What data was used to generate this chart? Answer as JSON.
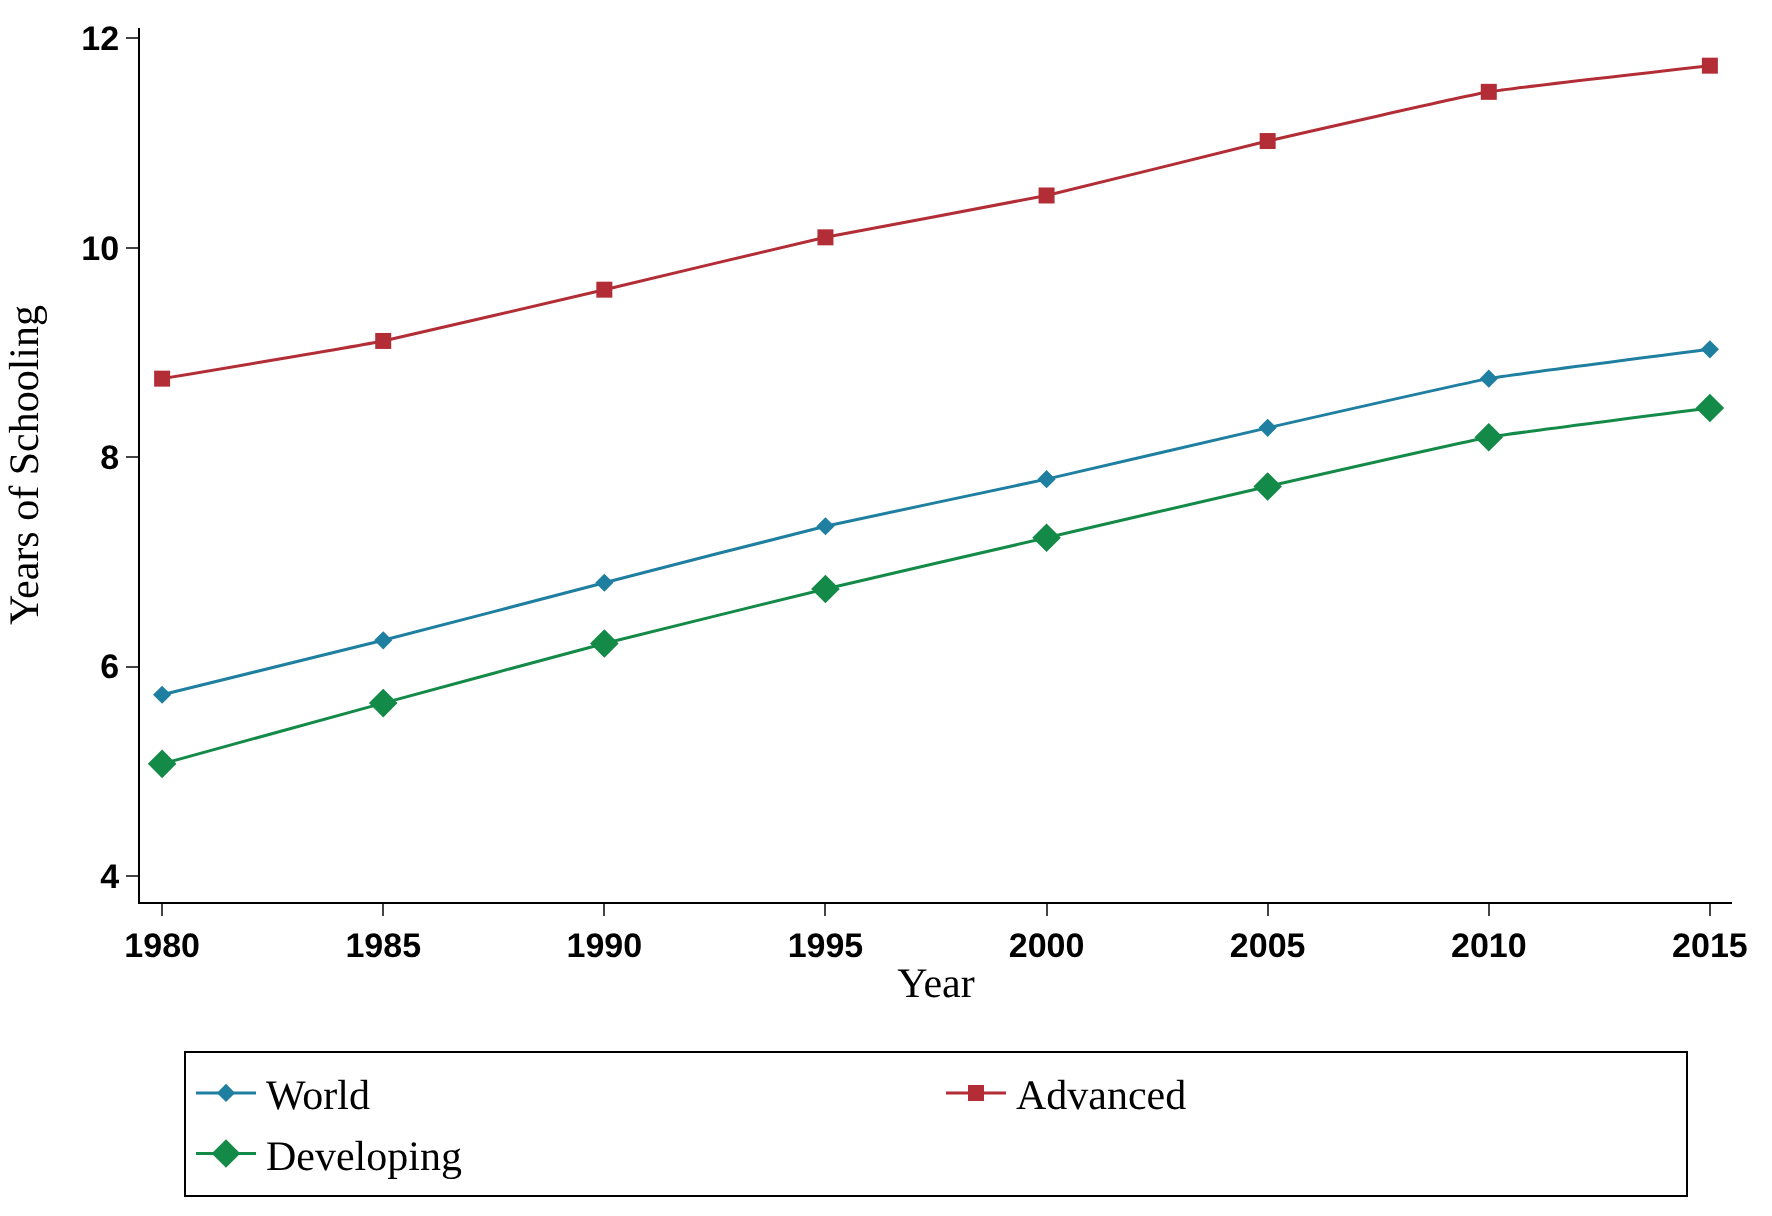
{
  "chart_data": {
    "type": "line",
    "xlabel": "Year",
    "ylabel": "Years of Schooling",
    "x": [
      1980,
      1985,
      1990,
      1995,
      2000,
      2005,
      2010,
      2015
    ],
    "series": [
      {
        "name": "World",
        "color": "#1f7fa0",
        "marker": "diamond",
        "values": [
          5.73,
          6.25,
          6.8,
          7.34,
          7.79,
          8.28,
          8.75,
          9.03
        ]
      },
      {
        "name": "Advanced",
        "color": "#b22d35",
        "marker": "square",
        "values": [
          8.75,
          9.11,
          9.6,
          10.1,
          10.5,
          11.02,
          11.49,
          11.74
        ]
      },
      {
        "name": "Developing",
        "color": "#148a48",
        "marker": "diamond",
        "values": [
          5.07,
          5.65,
          6.22,
          6.74,
          7.23,
          7.72,
          8.19,
          8.47
        ]
      }
    ],
    "xlim": [
      1979.5,
      2015.5
    ],
    "xticks": [
      1980,
      1985,
      1990,
      1995,
      2000,
      2005,
      2010,
      2015
    ],
    "ylim": [
      3.75,
      12.1
    ],
    "yticks": [
      4,
      6,
      8,
      10,
      12
    ],
    "legend": "bottom",
    "line_style": "solid"
  }
}
